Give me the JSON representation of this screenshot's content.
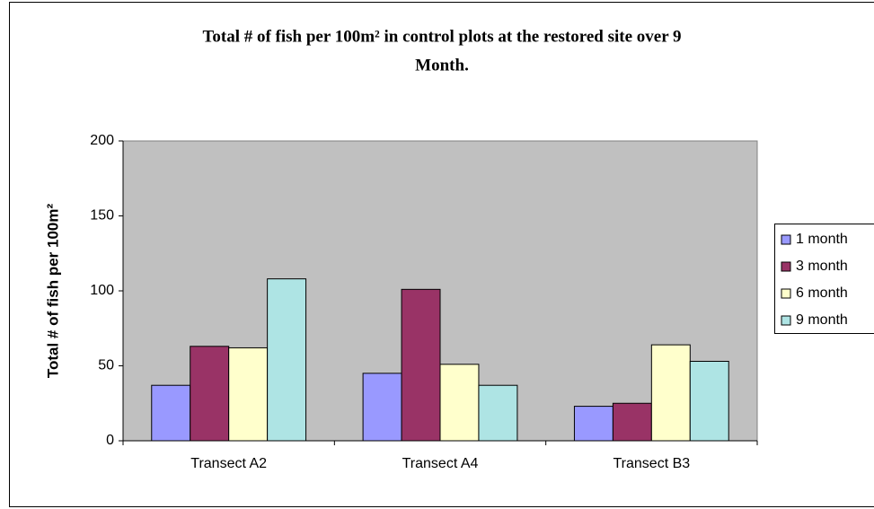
{
  "chart_data": {
    "type": "bar",
    "title": [
      "Total # of fish per 100m² in control plots at the restored site over 9",
      "Month."
    ],
    "y_label": "Total # of fish per 100m²",
    "categories": [
      "Transect A2",
      "Transect A4",
      "Transect B3"
    ],
    "series": [
      {
        "name": "1 month",
        "color": "#9999ff",
        "values": [
          37,
          45,
          23
        ]
      },
      {
        "name": "3 month",
        "color": "#993366",
        "values": [
          63,
          101,
          25
        ]
      },
      {
        "name": "6 month",
        "color": "#ffffcc",
        "values": [
          62,
          51,
          64
        ]
      },
      {
        "name": "9 month",
        "color": "#aee4e4",
        "values": [
          108,
          37,
          53
        ]
      }
    ],
    "ylim": [
      0,
      200
    ],
    "yticks": [
      0,
      50,
      100,
      150,
      200
    ],
    "grid": false,
    "legend": "right"
  }
}
